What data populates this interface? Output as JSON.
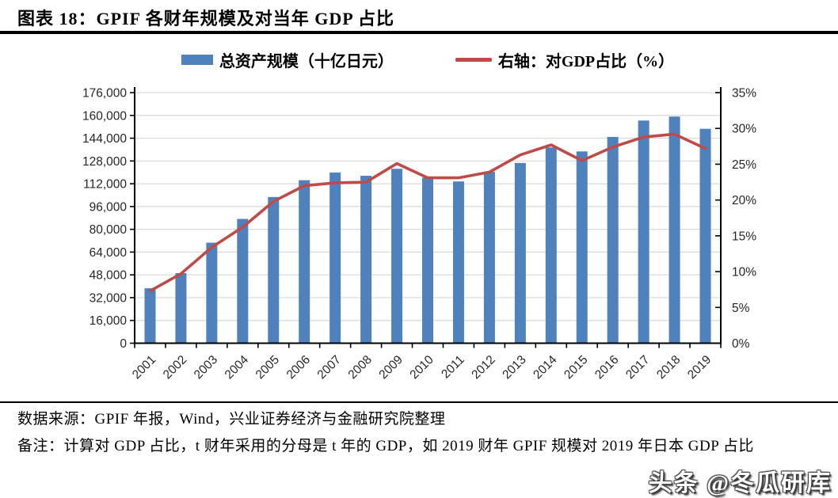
{
  "header": {
    "title": "图表 18：GPIF 各财年规模及对当年 GDP 占比"
  },
  "legend": {
    "items": [
      {
        "label": "总资产规模（十亿日元）",
        "marker": "bar-swatch",
        "color": "#4F81BD"
      },
      {
        "label": "右轴：对GDP占比（%）",
        "marker": "line-swatch",
        "color": "#BE4B48"
      }
    ]
  },
  "chart_data": {
    "type": "bar",
    "title": "GPIF 各财年规模及对当年 GDP 占比",
    "xlabel": "",
    "ylabel_left": "总资产规模（十亿日元）",
    "ylabel_right": "对GDP占比（%）",
    "grid": true,
    "legend_position": "top",
    "categories": [
      "2001",
      "2002",
      "2003",
      "2004",
      "2005",
      "2006",
      "2007",
      "2008",
      "2009",
      "2010",
      "2011",
      "2012",
      "2013",
      "2014",
      "2015",
      "2016",
      "2017",
      "2018",
      "2019"
    ],
    "series": [
      {
        "name": "总资产规模（十亿日元）",
        "type": "bar",
        "axis": "left",
        "color": "#4F81BD",
        "values": [
          38600,
          49200,
          70600,
          87300,
          102700,
          114500,
          119900,
          117600,
          122500,
          116300,
          113600,
          120500,
          126600,
          137500,
          134700,
          144900,
          156400,
          159200,
          150600
        ]
      },
      {
        "name": "右轴：对GDP占比（%）",
        "type": "line",
        "axis": "right",
        "color": "#BE4B48",
        "values": [
          7.3,
          9.7,
          13.4,
          16.2,
          19.8,
          22.0,
          22.4,
          22.5,
          25.1,
          23.1,
          23.1,
          23.9,
          26.3,
          27.7,
          25.5,
          27.4,
          28.8,
          29.2,
          27.2
        ]
      }
    ],
    "left_axis": {
      "min": 0,
      "max": 176000,
      "step": 16000,
      "tick_labels": [
        "0",
        "16,000",
        "32,000",
        "48,000",
        "64,000",
        "80,000",
        "96,000",
        "112,000",
        "128,000",
        "144,000",
        "160,000",
        "176,000"
      ]
    },
    "right_axis": {
      "min": 0,
      "max": 35,
      "step": 5,
      "tick_labels": [
        "0%",
        "5%",
        "10%",
        "15%",
        "20%",
        "25%",
        "30%",
        "35%"
      ]
    },
    "colors": {
      "gridline": "#D9D9D9",
      "axis": "#000000",
      "tick_text": "#262626"
    }
  },
  "footer": {
    "source": "数据来源：GPIF 年报，Wind，兴业证券经济与金融研究院整理",
    "note": "备注：计算对 GDP 占比，t 财年采用的分母是 t 年的 GDP，如 2019 财年 GPIF 规模对 2019 年日本 GDP 占比",
    "watermark": "头条 @冬瓜研库"
  }
}
